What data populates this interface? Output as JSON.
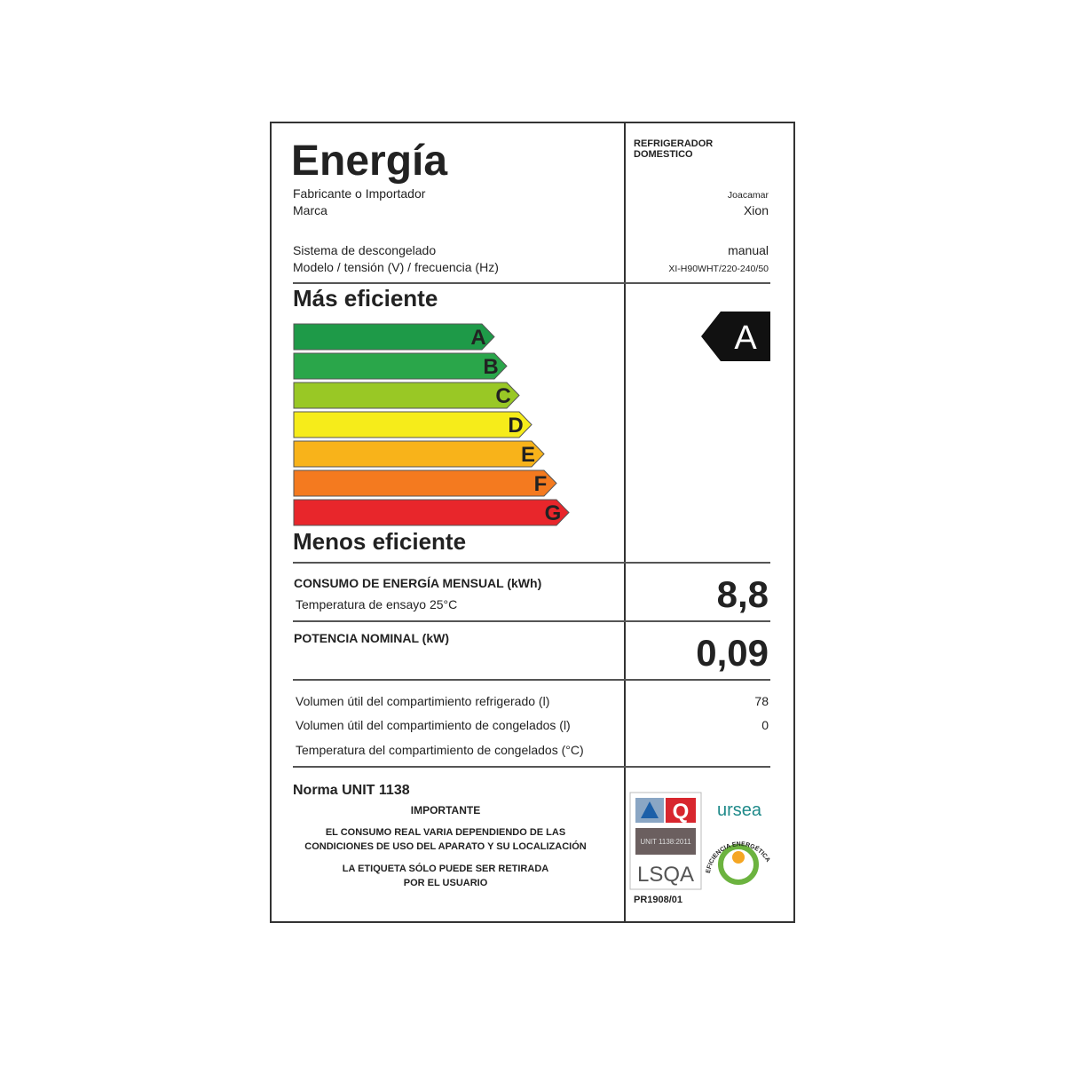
{
  "header": {
    "title": "Energía",
    "appliance": [
      "REFRIGERADOR",
      "DOMESTICO"
    ]
  },
  "info": [
    {
      "label": "Fabricante o Importador",
      "value": "Joacamar"
    },
    {
      "label": "Marca",
      "value": "Xion"
    },
    {
      "label": "Sistema de descongelado",
      "value": "manual"
    },
    {
      "label": "Modelo / tensión (V) / frecuencia (Hz)",
      "value": "XI-H90WHT/220-240/50"
    }
  ],
  "scale": {
    "top_label": "Más eficiente",
    "bottom_label": "Menos eficiente",
    "classes": [
      {
        "letter": "A",
        "color": "#1e9a48"
      },
      {
        "letter": "B",
        "color": "#2aa64a"
      },
      {
        "letter": "C",
        "color": "#99c825"
      },
      {
        "letter": "D",
        "color": "#f6ec1a"
      },
      {
        "letter": "E",
        "color": "#f8b31a"
      },
      {
        "letter": "F",
        "color": "#f47a1f"
      },
      {
        "letter": "G",
        "color": "#e8262b"
      }
    ],
    "rating": "A"
  },
  "energy": {
    "label": "CONSUMO DE ENERGÍA MENSUAL (kWh)",
    "note": "Temperatura de ensayo 25°C",
    "value": "8,8"
  },
  "power": {
    "label": "POTENCIA NOMINAL (kW)",
    "value": "0,09"
  },
  "volumes": [
    {
      "label": "Volumen útil del compartimiento refrigerado (l)",
      "value": 78
    },
    {
      "label": "Volumen útil del compartimiento de congelados (l)",
      "value": 0
    },
    {
      "label": "Temperatura del compartimiento de congelados (°C)"
    }
  ],
  "footer": {
    "standard": "Norma UNIT 1138",
    "important": "IMPORTANTE",
    "notice": [
      "EL CONSUMO REAL VARIA DEPENDIENDO DE LAS",
      "CONDICIONES DE USO DEL APARATO Y SU LOCALIZACIÓN"
    ],
    "removal": [
      "LA ETIQUETA SÓLO PUEDE SER RETIRADA",
      "POR EL USUARIO"
    ],
    "certification": {
      "badge": "UNIT 1138:2011",
      "lab": "LSQA",
      "code": "PR1908/01"
    },
    "regulator": "ursea",
    "seal": "EFICIENCIA ENERGÉTICA"
  }
}
